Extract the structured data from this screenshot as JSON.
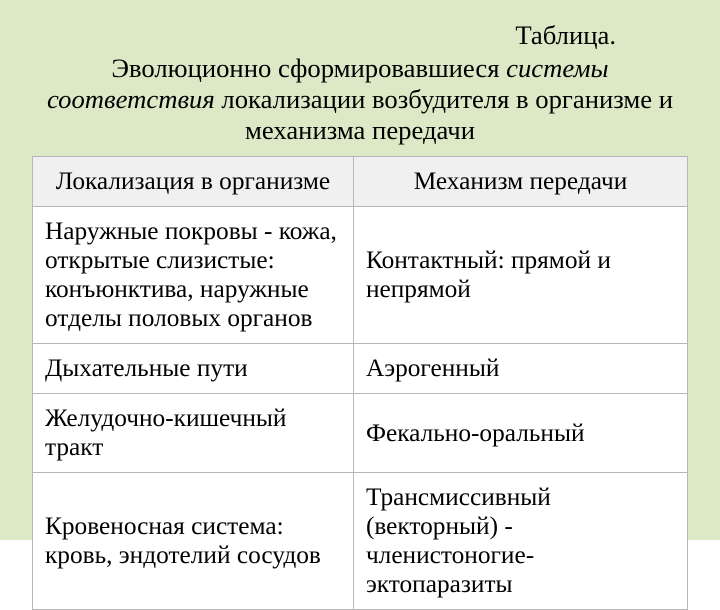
{
  "slide": {
    "background_color": "#dde8c6",
    "caption": {
      "label": "Таблица.",
      "pre_italic": "Эволюционно сформировавшиеся ",
      "italic": "системы соответствия",
      "post_italic": " локализации возбудителя в организме и механизма передачи",
      "color": "#000000",
      "fontsize_pt": 20
    }
  },
  "table": {
    "type": "table",
    "border_color": "#b7b7b7",
    "header_background": "#f0f0f0",
    "header_text_color": "#000000",
    "cell_background": "#ffffff",
    "cell_text_color": "#000000",
    "fontsize_pt": 19,
    "column_widths_pct": [
      49,
      51
    ],
    "columns": [
      "Локализация в организме",
      "Механизм передачи"
    ],
    "rows": [
      [
        "Наружные покровы - кожа, открытые слизистые: конъюнктива, наружные отделы половых органов",
        "Контактный: прямой и непрямой"
      ],
      [
        "Дыхательные пути",
        "Аэрогенный"
      ],
      [
        "Желудочно-кишечный тракт",
        "Фекально-оральный"
      ],
      [
        "Кровеносная система: кровь, эндотелий сосудов",
        "Трансмиссивный (векторный) - членистоногие-эктопаразиты"
      ]
    ]
  }
}
